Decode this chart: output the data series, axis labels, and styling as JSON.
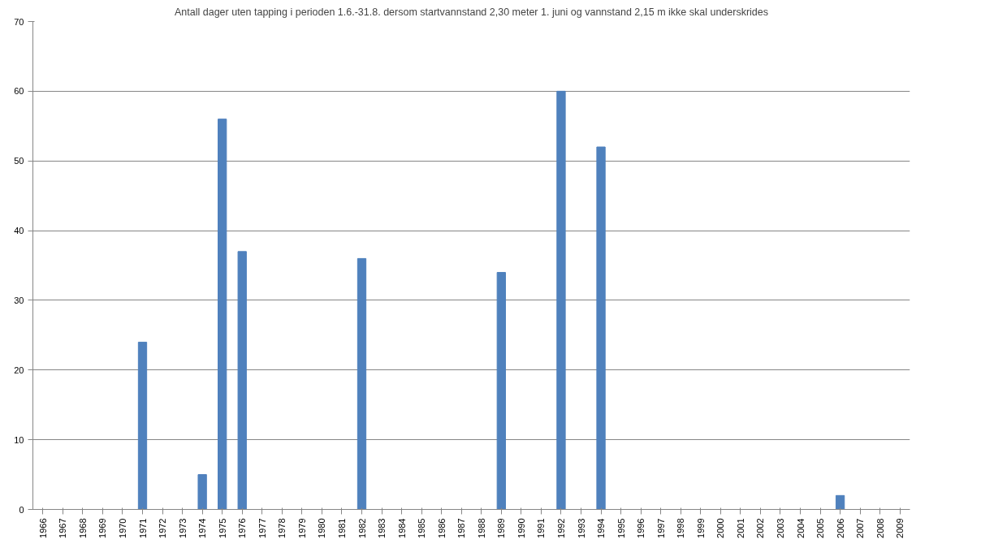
{
  "chart_data": {
    "type": "bar",
    "title": "Antall dager uten tapping i perioden 1.6.-31.8. dersom startvannstand 2,30 meter 1. juni og vannstand 2,15 m ikke skal underskrides",
    "categories": [
      "1966",
      "1967",
      "1968",
      "1969",
      "1970",
      "1971",
      "1972",
      "1973",
      "1974",
      "1975",
      "1976",
      "1977",
      "1978",
      "1979",
      "1980",
      "1981",
      "1982",
      "1983",
      "1984",
      "1985",
      "1986",
      "1987",
      "1988",
      "1989",
      "1990",
      "1991",
      "1992",
      "1993",
      "1994",
      "1995",
      "1996",
      "1997",
      "1998",
      "1999",
      "2000",
      "2001",
      "2002",
      "2003",
      "2004",
      "2005",
      "2006",
      "2007",
      "2008",
      "2009"
    ],
    "values": [
      0,
      0,
      0,
      0,
      0,
      24,
      0,
      0,
      5,
      56,
      37,
      0,
      0,
      0,
      0,
      0,
      36,
      0,
      0,
      0,
      0,
      0,
      0,
      34,
      0,
      0,
      60,
      0,
      52,
      0,
      0,
      0,
      0,
      0,
      0,
      0,
      0,
      0,
      0,
      0,
      2,
      0,
      0,
      0
    ],
    "color": "#4f81bd",
    "ylim": [
      0,
      70
    ],
    "yticks": [
      0,
      10,
      20,
      30,
      40,
      50,
      60,
      70
    ],
    "grid": "y"
  }
}
